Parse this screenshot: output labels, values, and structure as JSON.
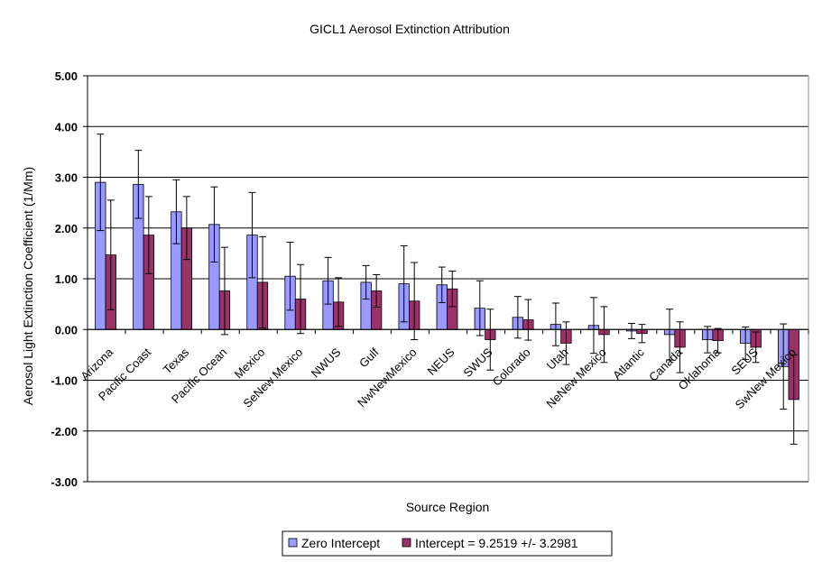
{
  "chart_data": {
    "type": "bar",
    "title": "GICL1 Aerosol Extinction Attribution",
    "xlabel": "Source Region",
    "ylabel": "Aerosol Light Extinction Coefficient (1/Mm)",
    "ylim": [
      -3,
      5
    ],
    "yticks": [
      5,
      4,
      3,
      2,
      1,
      0,
      -1,
      -2,
      -3
    ],
    "ytick_labels": [
      "5.00",
      "4.00",
      "3.00",
      "2.00",
      "1.00",
      "0.00",
      "-1.00",
      "-2.00",
      "-3.00"
    ],
    "grid": true,
    "legend_position": "bottom",
    "categories": [
      "Arizona",
      "Pacific Coast",
      "Texas",
      "Pacific Ocean",
      "Mexico",
      "SeNew Mexico",
      "NWUS",
      "Gulf",
      "NwNewMexico",
      "NEUS",
      "SWUS",
      "Colorado",
      "Utah",
      "NeNew Mexico",
      "Atlantic",
      "Canada",
      "Oklahoma",
      "SEUS",
      "SwNew Mexico"
    ],
    "series": [
      {
        "name": "Zero Intercept",
        "color": "#9999ff",
        "values": [
          2.9,
          2.86,
          2.32,
          2.07,
          1.86,
          1.05,
          0.96,
          0.93,
          0.9,
          0.88,
          0.42,
          0.24,
          0.1,
          0.08,
          -0.03,
          -0.1,
          -0.2,
          -0.27,
          -0.73
        ],
        "errors": [
          0.95,
          0.67,
          0.63,
          0.74,
          0.84,
          0.67,
          0.46,
          0.33,
          0.75,
          0.35,
          0.54,
          0.41,
          0.42,
          0.55,
          0.15,
          0.5,
          0.26,
          0.32,
          0.84
        ]
      },
      {
        "name": "Intercept = 9.2519 +/- 3.2981",
        "color": "#993366",
        "values": [
          1.47,
          1.86,
          2.0,
          0.76,
          0.93,
          0.6,
          0.54,
          0.76,
          0.56,
          0.8,
          -0.2,
          0.19,
          -0.27,
          -0.1,
          -0.08,
          -0.35,
          -0.22,
          -0.35,
          -1.38
        ],
        "errors": [
          1.08,
          0.76,
          0.62,
          0.86,
          0.9,
          0.68,
          0.48,
          0.32,
          0.76,
          0.35,
          0.6,
          0.4,
          0.42,
          0.55,
          0.18,
          0.5,
          0.24,
          0.3,
          0.88
        ]
      }
    ]
  }
}
